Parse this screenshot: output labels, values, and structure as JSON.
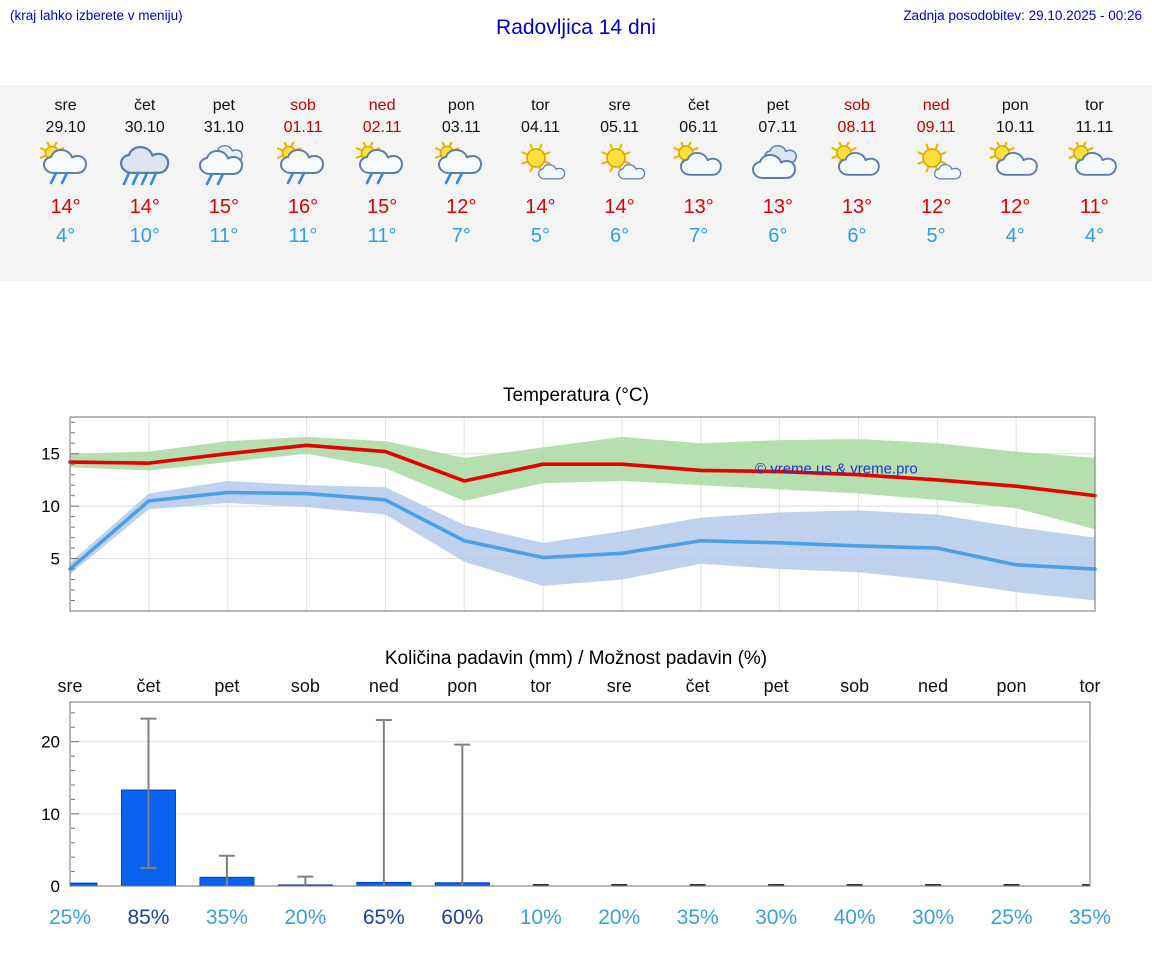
{
  "header": {
    "left_note": "(kraj lahko izberete v meniju)",
    "title": "Radovljica 14 dni",
    "updated": "Zadnja posodobitev: 29.10.2025 - 00:26"
  },
  "forecast_days": [
    {
      "day": "sre",
      "date": "29.10",
      "weekend": false,
      "icon": "sun-cloud-rain",
      "high": "14°",
      "low": "4°"
    },
    {
      "day": "čet",
      "date": "30.10",
      "weekend": false,
      "icon": "cloud-heavy-rain",
      "high": "14°",
      "low": "10°"
    },
    {
      "day": "pet",
      "date": "31.10",
      "weekend": false,
      "icon": "cloud-rain",
      "high": "15°",
      "low": "11°"
    },
    {
      "day": "sob",
      "date": "01.11",
      "weekend": true,
      "icon": "sun-cloud-rain",
      "high": "16°",
      "low": "11°"
    },
    {
      "day": "ned",
      "date": "02.11",
      "weekend": true,
      "icon": "sun-cloud-rain",
      "high": "15°",
      "low": "11°"
    },
    {
      "day": "pon",
      "date": "03.11",
      "weekend": false,
      "icon": "sun-cloud-rain",
      "high": "12°",
      "low": "7°"
    },
    {
      "day": "tor",
      "date": "04.11",
      "weekend": false,
      "icon": "sun-small-cloud",
      "high": "14°",
      "low": "5°"
    },
    {
      "day": "sre",
      "date": "05.11",
      "weekend": false,
      "icon": "sun-small-cloud",
      "high": "14°",
      "low": "6°"
    },
    {
      "day": "čet",
      "date": "06.11",
      "weekend": false,
      "icon": "sun-cloud",
      "high": "13°",
      "low": "7°"
    },
    {
      "day": "pet",
      "date": "07.11",
      "weekend": false,
      "icon": "cloudy",
      "high": "13°",
      "low": "6°"
    },
    {
      "day": "sob",
      "date": "08.11",
      "weekend": true,
      "icon": "sun-cloud",
      "high": "13°",
      "low": "6°"
    },
    {
      "day": "ned",
      "date": "09.11",
      "weekend": true,
      "icon": "sun-small-cloud",
      "high": "12°",
      "low": "5°"
    },
    {
      "day": "pon",
      "date": "10.11",
      "weekend": false,
      "icon": "sun-cloud",
      "high": "12°",
      "low": "4°"
    },
    {
      "day": "tor",
      "date": "11.11",
      "weekend": false,
      "icon": "sun-cloud",
      "high": "11°",
      "low": "4°"
    }
  ],
  "chart_data": [
    {
      "type": "line",
      "title": "Temperatura (°C)",
      "categories": [
        "sre",
        "čet",
        "pet",
        "sob",
        "ned",
        "pon",
        "tor",
        "sre",
        "čet",
        "pet",
        "sob",
        "ned",
        "pon",
        "tor"
      ],
      "ylim": [
        0,
        18.5
      ],
      "yticks": [
        5,
        10,
        15
      ],
      "grid": true,
      "watermark": "© vreme.us & vreme.pro",
      "series": [
        {
          "name": "max-temp",
          "color": "#e60000",
          "values": [
            14.2,
            14.1,
            15.0,
            15.8,
            15.2,
            12.4,
            14.0,
            14.0,
            13.4,
            13.3,
            13.0,
            12.5,
            11.9,
            11.0
          ],
          "band_upper": [
            15.0,
            15.2,
            16.2,
            16.6,
            16.2,
            14.6,
            15.6,
            16.6,
            16.0,
            16.3,
            16.4,
            16.0,
            15.2,
            14.6
          ],
          "band_lower": [
            13.7,
            13.4,
            14.2,
            15.0,
            13.6,
            10.5,
            12.2,
            12.4,
            12.0,
            11.6,
            11.2,
            10.6,
            9.8,
            7.8
          ],
          "band_color": "#a9d9a2"
        },
        {
          "name": "min-temp",
          "color": "#4aa0e8",
          "values": [
            4.0,
            10.5,
            11.3,
            11.2,
            10.6,
            6.7,
            5.1,
            5.5,
            6.7,
            6.5,
            6.2,
            6.0,
            4.4,
            4.0
          ],
          "band_upper": [
            4.6,
            11.2,
            12.4,
            12.0,
            11.8,
            8.2,
            6.5,
            7.6,
            8.9,
            9.4,
            9.6,
            9.2,
            8.0,
            7.0
          ],
          "band_lower": [
            3.5,
            9.7,
            10.3,
            9.9,
            9.2,
            4.7,
            2.4,
            3.0,
            4.5,
            4.0,
            3.7,
            2.9,
            1.8,
            1.0
          ],
          "band_color": "#b5c9ea"
        }
      ]
    },
    {
      "type": "bar",
      "title": "Količina padavin (mm) / Možnost padavin (%)",
      "categories": [
        "sre",
        "čet",
        "pet",
        "sob",
        "ned",
        "pon",
        "tor",
        "sre",
        "čet",
        "pet",
        "sob",
        "ned",
        "pon",
        "tor"
      ],
      "ylim": [
        0,
        25.5
      ],
      "yticks": [
        0,
        10,
        20
      ],
      "bar_color": "#0b62f0",
      "values": [
        0.4,
        13.3,
        1.2,
        0.15,
        0.5,
        0.45,
        0,
        0,
        0,
        0,
        0,
        0,
        0,
        0
      ],
      "whiskers": [
        null,
        [
          2.5,
          23.2
        ],
        [
          0,
          4.2
        ],
        [
          0,
          1.3
        ],
        [
          0,
          23.0
        ],
        [
          0,
          19.6
        ],
        null,
        null,
        null,
        null,
        null,
        null,
        null,
        null
      ],
      "probabilities": [
        {
          "label": "25%",
          "strong": false
        },
        {
          "label": "85%",
          "strong": true
        },
        {
          "label": "35%",
          "strong": false
        },
        {
          "label": "20%",
          "strong": false
        },
        {
          "label": "65%",
          "strong": true
        },
        {
          "label": "60%",
          "strong": true
        },
        {
          "label": "10%",
          "strong": false
        },
        {
          "label": "20%",
          "strong": false
        },
        {
          "label": "35%",
          "strong": false
        },
        {
          "label": "30%",
          "strong": false
        },
        {
          "label": "40%",
          "strong": false
        },
        {
          "label": "30%",
          "strong": false
        },
        {
          "label": "25%",
          "strong": false
        },
        {
          "label": "35%",
          "strong": false
        }
      ]
    }
  ],
  "colors": {
    "header_blue": "#0000cc",
    "weekend_red": "#c00000",
    "high_red": "#e00000",
    "low_blue": "#2d9fe0",
    "prob_light": "#3aa0d8",
    "prob_strong": "#1c3fa8",
    "watermark_blue": "#2233cc"
  }
}
